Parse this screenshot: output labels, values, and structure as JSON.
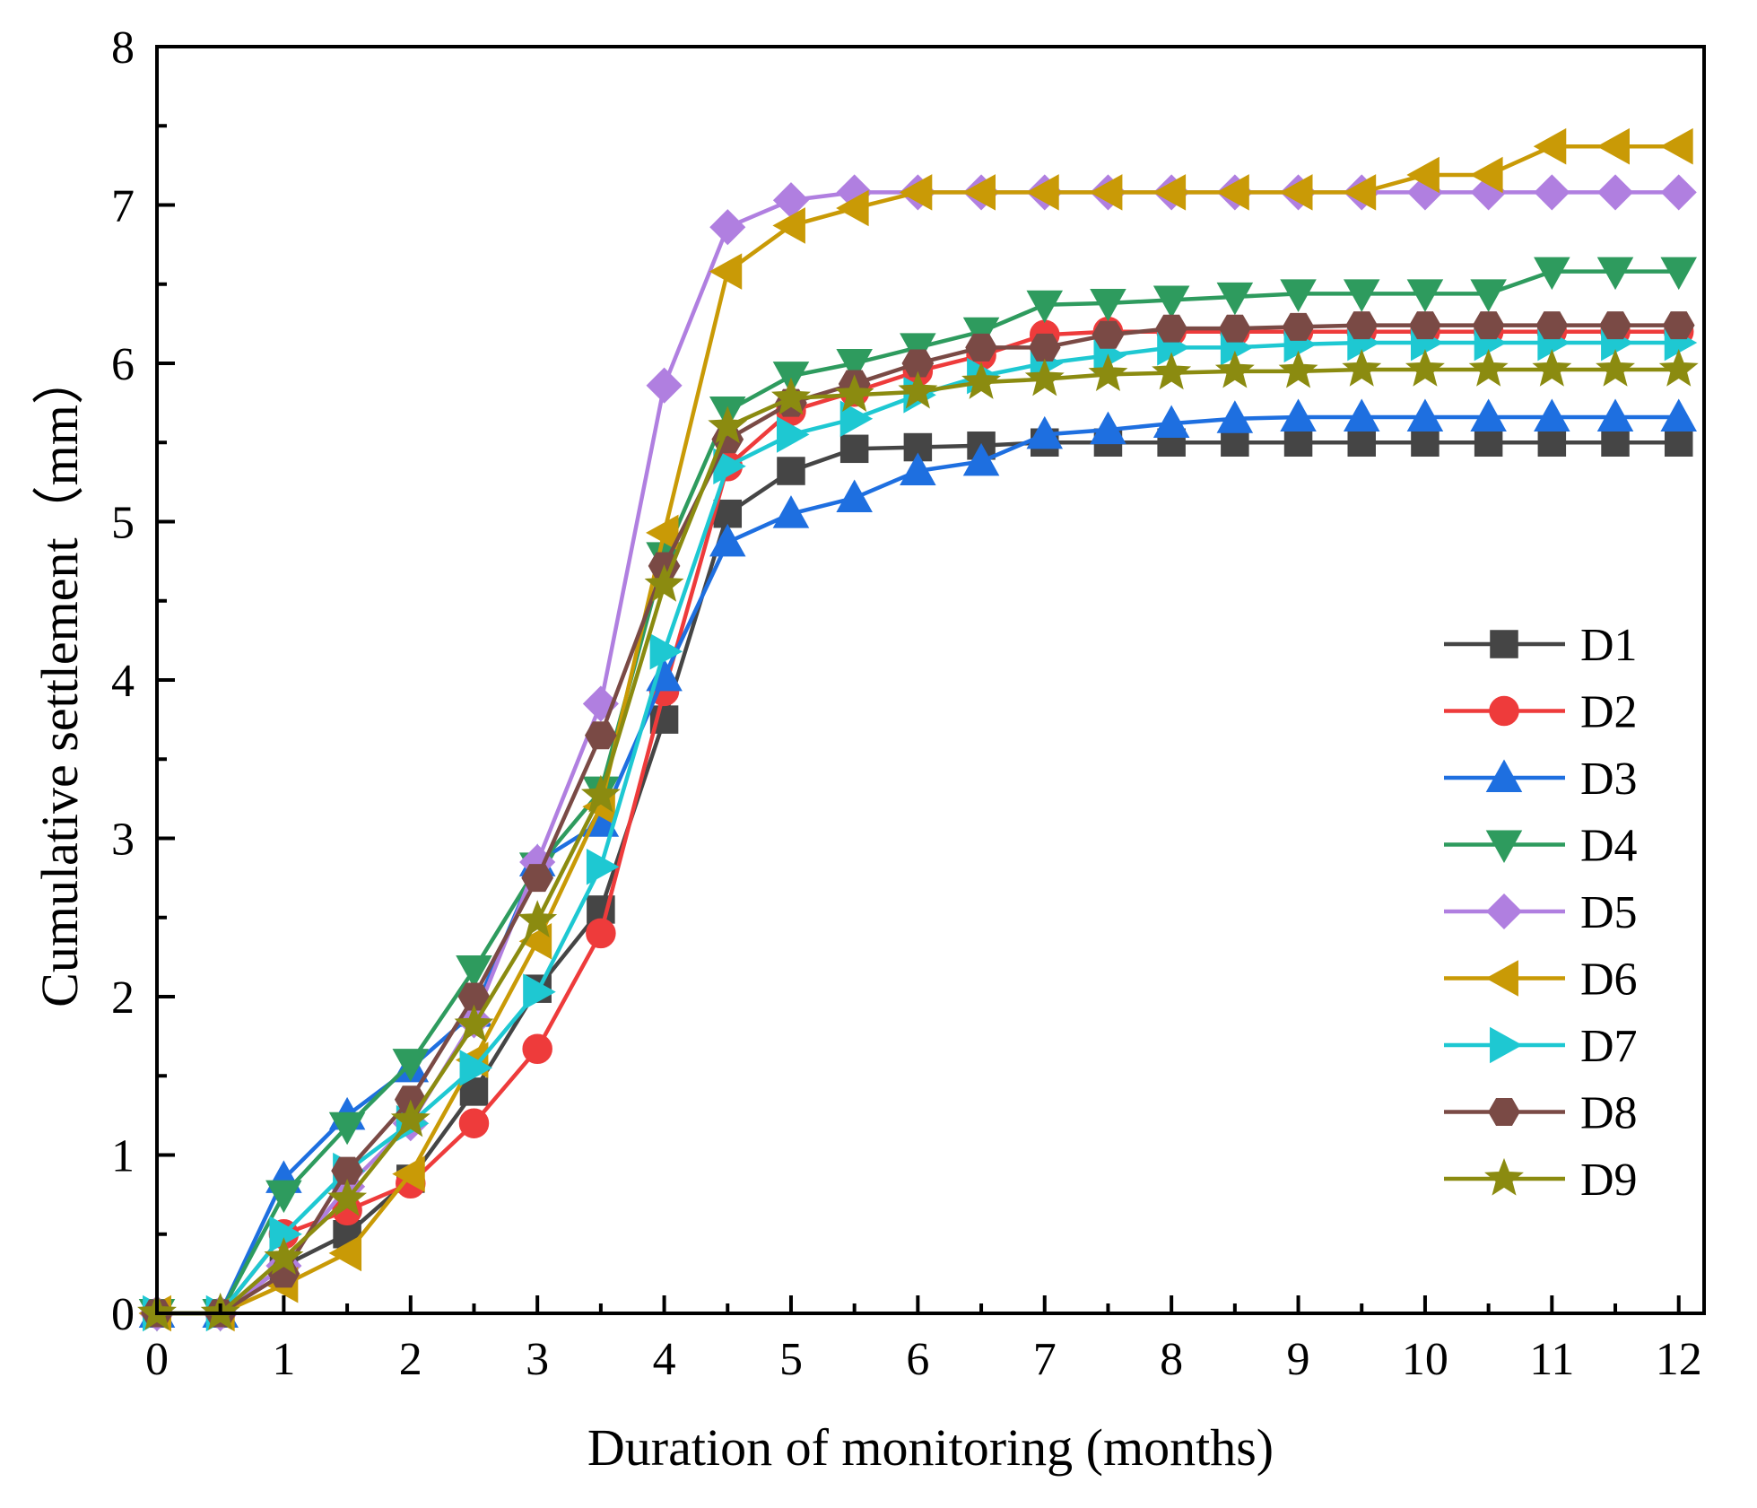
{
  "chart_data": {
    "type": "line",
    "title": "",
    "xlabel": "Duration of monitoring (months)",
    "ylabel": "Cumulative settlement（mm）",
    "xlim": [
      0,
      12.2
    ],
    "ylim": [
      0,
      8
    ],
    "xticks": [
      0,
      1,
      2,
      3,
      4,
      5,
      6,
      7,
      8,
      9,
      10,
      11,
      12
    ],
    "yticks": [
      0,
      1,
      2,
      3,
      4,
      5,
      6,
      7,
      8
    ],
    "legend_position": "right-middle",
    "x": [
      0,
      0.5,
      1,
      1.5,
      2,
      2.5,
      3,
      3.5,
      4,
      4.5,
      5,
      5.5,
      6,
      6.5,
      7,
      7.5,
      8,
      8.5,
      9,
      9.5,
      10,
      10.5,
      11,
      11.5,
      12
    ],
    "series": [
      {
        "name": "D1",
        "color": "#454545",
        "marker": "square",
        "values": [
          0,
          0,
          0.3,
          0.5,
          0.85,
          1.4,
          2.05,
          2.55,
          3.75,
          5.05,
          5.32,
          5.46,
          5.47,
          5.48,
          5.5,
          5.5,
          5.5,
          5.5,
          5.5,
          5.5,
          5.5,
          5.5,
          5.5,
          5.5,
          5.5
        ]
      },
      {
        "name": "D2",
        "color": "#ee3b3b",
        "marker": "circle",
        "values": [
          0,
          0,
          0.5,
          0.65,
          0.82,
          1.2,
          1.67,
          2.4,
          3.93,
          5.35,
          5.7,
          5.82,
          5.95,
          6.05,
          6.18,
          6.2,
          6.2,
          6.2,
          6.2,
          6.2,
          6.2,
          6.2,
          6.2,
          6.2,
          6.2
        ]
      },
      {
        "name": "D3",
        "color": "#1e6fe0",
        "marker": "triangle-up",
        "values": [
          0,
          0,
          0.85,
          1.25,
          1.55,
          1.9,
          2.85,
          3.1,
          4.02,
          4.87,
          5.05,
          5.15,
          5.32,
          5.38,
          5.55,
          5.58,
          5.62,
          5.65,
          5.66,
          5.66,
          5.66,
          5.66,
          5.66,
          5.66,
          5.66
        ]
      },
      {
        "name": "D4",
        "color": "#2e9b5e",
        "marker": "triangle-down",
        "values": [
          0,
          0,
          0.75,
          1.18,
          1.58,
          2.17,
          2.82,
          3.3,
          4.78,
          5.7,
          5.92,
          6.0,
          6.1,
          6.2,
          6.37,
          6.38,
          6.4,
          6.42,
          6.44,
          6.44,
          6.44,
          6.44,
          6.58,
          6.58,
          6.58
        ]
      },
      {
        "name": "D5",
        "color": "#b07fe0",
        "marker": "diamond",
        "values": [
          0,
          0,
          0.3,
          0.8,
          1.2,
          1.85,
          2.85,
          3.85,
          5.86,
          6.86,
          7.03,
          7.08,
          7.08,
          7.08,
          7.08,
          7.08,
          7.08,
          7.08,
          7.08,
          7.08,
          7.08,
          7.08,
          7.08,
          7.08,
          7.08
        ]
      },
      {
        "name": "D6",
        "color": "#c99a06",
        "marker": "triangle-left",
        "values": [
          0,
          0,
          0.18,
          0.38,
          0.88,
          1.6,
          2.35,
          3.2,
          4.93,
          6.58,
          6.87,
          6.98,
          7.08,
          7.08,
          7.08,
          7.08,
          7.08,
          7.08,
          7.08,
          7.08,
          7.19,
          7.19,
          7.37,
          7.37,
          7.37
        ]
      },
      {
        "name": "D7",
        "color": "#1ec8d2",
        "marker": "triangle-right",
        "values": [
          0,
          0,
          0.5,
          0.9,
          1.2,
          1.55,
          2.03,
          2.82,
          4.18,
          5.35,
          5.55,
          5.65,
          5.8,
          5.92,
          6.0,
          6.05,
          6.1,
          6.1,
          6.12,
          6.13,
          6.13,
          6.13,
          6.13,
          6.13,
          6.13
        ]
      },
      {
        "name": "D8",
        "color": "#7a4a45",
        "marker": "hexagon",
        "values": [
          0,
          0,
          0.25,
          0.9,
          1.35,
          2.0,
          2.75,
          3.65,
          4.72,
          5.52,
          5.75,
          5.87,
          6.0,
          6.1,
          6.1,
          6.18,
          6.22,
          6.22,
          6.23,
          6.24,
          6.24,
          6.24,
          6.24,
          6.24,
          6.24
        ]
      },
      {
        "name": "D9",
        "color": "#8b8b10",
        "marker": "star",
        "values": [
          0,
          0,
          0.35,
          0.72,
          1.22,
          1.82,
          2.48,
          3.27,
          4.6,
          5.6,
          5.78,
          5.8,
          5.82,
          5.88,
          5.9,
          5.93,
          5.94,
          5.95,
          5.95,
          5.96,
          5.96,
          5.96,
          5.96,
          5.96,
          5.96
        ]
      }
    ]
  }
}
